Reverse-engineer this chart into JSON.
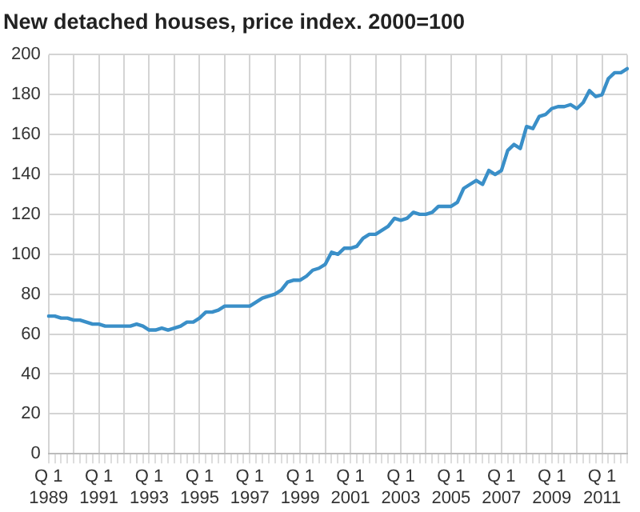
{
  "chart_data": {
    "type": "line",
    "title": "New detached houses, price index. 2000=100",
    "categories": [
      "Q 1 1989",
      null,
      null,
      null,
      null,
      null,
      null,
      null,
      "Q 1 1991",
      null,
      null,
      null,
      null,
      null,
      null,
      null,
      "Q 1 1993",
      null,
      null,
      null,
      null,
      null,
      null,
      null,
      "Q 1 1995",
      null,
      null,
      null,
      null,
      null,
      null,
      null,
      "Q 1 1997",
      null,
      null,
      null,
      null,
      null,
      null,
      null,
      "Q 1 1999",
      null,
      null,
      null,
      null,
      null,
      null,
      null,
      "Q 1 2001",
      null,
      null,
      null,
      null,
      null,
      null,
      null,
      "Q 1 2003",
      null,
      null,
      null,
      null,
      null,
      null,
      null,
      "Q 1 2005",
      null,
      null,
      null,
      null,
      null,
      null,
      null,
      "Q 1 2007",
      null,
      null,
      null,
      null,
      null,
      null,
      null,
      "Q 1 2009",
      null,
      null,
      null,
      null,
      null,
      null,
      null,
      "Q 1 2011",
      null,
      null,
      null,
      null
    ],
    "series": [
      {
        "color": "#3a8fc8",
        "values": [
          69,
          69,
          68,
          68,
          67,
          67,
          66,
          65,
          65,
          64,
          64,
          64,
          64,
          64,
          65,
          64,
          62,
          62,
          63,
          62,
          63,
          64,
          66,
          66,
          68,
          71,
          71,
          72,
          74,
          74,
          74,
          74,
          74,
          76,
          78,
          79,
          80,
          82,
          86,
          87,
          87,
          89,
          92,
          93,
          95,
          101,
          100,
          103,
          103,
          104,
          108,
          110,
          110,
          112,
          114,
          118,
          117,
          118,
          121,
          120,
          120,
          121,
          124,
          124,
          124,
          126,
          133,
          135,
          137,
          135,
          142,
          140,
          142,
          152,
          155,
          153,
          164,
          163,
          169,
          170,
          173,
          174,
          174,
          175,
          173,
          176,
          182,
          179,
          180,
          188,
          191,
          191,
          193
        ]
      }
    ],
    "ylim": [
      0,
      200
    ],
    "yticks": [
      0,
      20,
      40,
      60,
      80,
      100,
      120,
      140,
      160,
      180,
      200
    ],
    "grid": true,
    "legend": false,
    "marker": "none",
    "line_style": "solid"
  }
}
